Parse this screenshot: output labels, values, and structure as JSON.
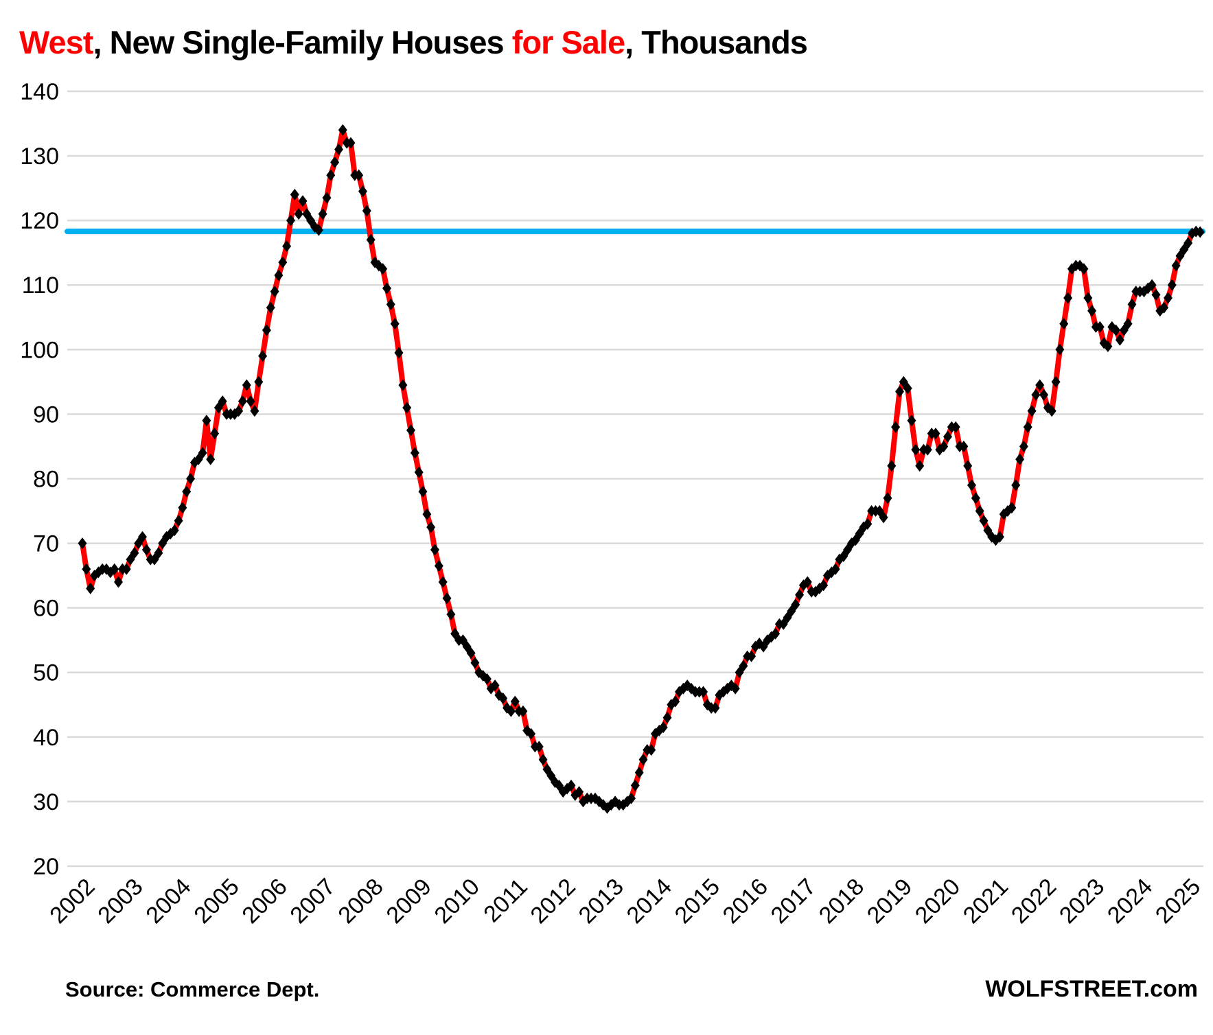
{
  "title": {
    "segments": [
      {
        "text": "West",
        "color": "#ff0000"
      },
      {
        "text": ", New Single-Family Houses ",
        "color": "#000000"
      },
      {
        "text": "for Sale",
        "color": "#ff0000"
      },
      {
        "text": ", Thousands",
        "color": "#000000"
      }
    ],
    "full_text": "West, New Single-Family Houses for Sale, Thousands"
  },
  "footer": {
    "source": "Source: Commerce Dept.",
    "brand": "WOLFSTREET.com"
  },
  "colors": {
    "series_line": "#ff0000",
    "marker": "#000000",
    "reference_line": "#00b0f0",
    "gridline": "#d9d9d9",
    "text": "#000000",
    "background": "#ffffff"
  },
  "chart_data": {
    "type": "line",
    "title": "West, New Single-Family Houses for Sale, Thousands",
    "xlabel": "",
    "ylabel": "",
    "ylim": [
      20,
      140
    ],
    "y_ticks": [
      140,
      130,
      120,
      110,
      100,
      90,
      80,
      70,
      60,
      50,
      40,
      30,
      20
    ],
    "x_tick_labels": [
      "2002",
      "2003",
      "2004",
      "2005",
      "2006",
      "2007",
      "2008",
      "2009",
      "2010",
      "2011",
      "2012",
      "2013",
      "2014",
      "2015",
      "2016",
      "2017",
      "2018",
      "2019",
      "2020",
      "2021",
      "2022",
      "2023",
      "2024",
      "2025"
    ],
    "grid": "horizontal",
    "legend": "none",
    "reference_line": {
      "value": 118.3,
      "color": "#00b0f0",
      "note": "horizontal line at current level extending back to 2002"
    },
    "series": [
      {
        "name": "New single-family houses for sale, West region",
        "frequency": "monthly",
        "start_year": 2002,
        "start_month": 1,
        "color": "#ff0000",
        "marker": "black-diamond",
        "values": [
          70,
          66,
          63,
          65,
          65.5,
          66,
          66,
          65.5,
          66,
          64,
          66,
          66,
          67.5,
          68.5,
          70,
          71,
          69,
          67.5,
          67.5,
          68.5,
          70,
          71,
          71.5,
          72,
          73.5,
          75.5,
          78,
          80,
          82.5,
          83,
          84,
          89,
          83,
          87,
          91,
          92,
          90,
          90,
          90,
          90.5,
          92,
          94.5,
          92,
          90.5,
          95,
          99,
          103,
          106.5,
          109,
          111.5,
          113.5,
          116,
          120,
          124,
          121,
          123,
          121,
          120,
          119,
          118.5,
          121,
          123.5,
          127,
          129,
          131,
          134,
          132,
          132,
          127,
          127,
          124.5,
          121.5,
          117,
          113.5,
          113,
          112.5,
          109.5,
          107,
          104,
          99.5,
          94.5,
          91,
          87.5,
          84,
          81,
          78,
          74.5,
          72.5,
          69,
          66.5,
          64,
          61.5,
          59,
          56,
          55,
          55,
          54,
          53,
          51.5,
          50,
          49.5,
          49,
          47.5,
          48,
          46.5,
          46,
          44.5,
          44,
          45.5,
          44,
          44,
          41,
          40.5,
          38.5,
          38.5,
          36.5,
          35,
          34,
          33,
          32.5,
          31.5,
          32,
          32.5,
          31,
          31.5,
          30,
          30.5,
          30.5,
          30.5,
          30,
          29.5,
          29,
          29.5,
          30,
          29.5,
          29.5,
          30,
          30.5,
          32.5,
          34.5,
          36.5,
          38,
          38,
          40.5,
          41,
          41.5,
          43,
          45,
          45.5,
          47,
          47.5,
          48,
          47.5,
          47,
          47,
          47,
          45,
          44.5,
          44.5,
          46.5,
          47,
          47.5,
          48,
          47.5,
          50,
          51,
          52.5,
          52.5,
          54,
          54.5,
          54,
          55,
          55.5,
          56,
          57.5,
          57.5,
          58.5,
          59.5,
          60.5,
          62,
          63.5,
          64,
          62.5,
          62.5,
          63,
          63.5,
          65,
          65.5,
          66,
          67.5,
          68,
          69,
          70,
          70.5,
          71.5,
          72.5,
          73,
          75,
          75,
          75,
          74,
          77,
          82,
          88,
          93.5,
          95,
          94,
          89,
          84.5,
          82,
          84.5,
          84.5,
          87,
          87,
          84.5,
          85,
          86.5,
          88,
          88,
          85,
          85,
          82,
          79,
          77,
          75,
          73.5,
          72,
          71,
          70.5,
          71,
          74.5,
          75,
          75.5,
          79,
          83,
          85,
          88,
          90.5,
          93,
          94.5,
          93,
          91,
          90.5,
          95,
          100,
          104,
          108,
          112.5,
          113,
          113,
          112.5,
          108,
          106,
          103.5,
          103.5,
          101,
          100.5,
          103.5,
          103,
          101.5,
          103,
          104,
          107,
          109,
          109,
          109,
          109.5,
          110,
          108.5,
          106,
          106.5,
          108,
          110,
          113,
          114.5,
          115.5,
          116.5,
          118,
          118.3,
          118.2
        ]
      }
    ]
  }
}
